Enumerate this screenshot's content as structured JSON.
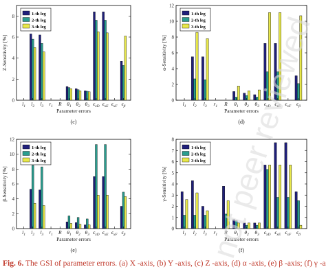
{
  "colors": {
    "series": [
      "#1f1f7a",
      "#2a9d8f",
      "#e8e84a"
    ],
    "caption": "#c0392b",
    "watermark": "#dcdcdc"
  },
  "watermark_text": "not peer reviewed",
  "caption": {
    "label": "Fig. 6.",
    "text": "The GSI of parameter errors. (a)  X -axis, (b)  Y -axis, (c)  Z -axis, (d)  α -axis, (e)  β -axis; (f)  γ -axis."
  },
  "chart_data": [
    {
      "panel": "(c)",
      "type": "bar",
      "ylabel": "Z-Sensitivity [%]",
      "xlabel": "Parameter errors",
      "ylim": [
        0,
        9
      ],
      "yticks": [
        0,
        2,
        4,
        6,
        8
      ],
      "legend": "top-left",
      "categories": [
        "l1",
        "l2",
        "l3",
        "r1",
        "R",
        "θ1",
        "θ2",
        "θ3",
        "ϵxD",
        "ϵxE",
        "ϵxF",
        "ϵβ"
      ],
      "series": [
        {
          "name": "1-th leg",
          "values": [
            0,
            6.3,
            6.2,
            0,
            0,
            1.3,
            1.1,
            0.9,
            8.4,
            8.4,
            0,
            3.7
          ]
        },
        {
          "name": "2-th leg",
          "values": [
            0,
            5.8,
            5.4,
            0,
            0,
            1.2,
            1.0,
            0.85,
            7.6,
            7.6,
            0,
            3.3
          ]
        },
        {
          "name": "3-th leg",
          "values": [
            0,
            5.0,
            4.6,
            0,
            0,
            1.1,
            0.9,
            0.8,
            6.5,
            6.4,
            0,
            6.1
          ]
        }
      ]
    },
    {
      "panel": "(d)",
      "type": "bar",
      "ylabel": "α-Sensitivity [%]",
      "xlabel": "Parameter errors",
      "ylim": [
        0,
        12
      ],
      "yticks": [
        0,
        2,
        4,
        6,
        8,
        10,
        12
      ],
      "legend": "top-left",
      "categories": [
        "l1",
        "l2",
        "l3",
        "r1",
        "R",
        "θ1",
        "θ2",
        "θ3",
        "ϵxD",
        "ϵxE",
        "ϵxF",
        "ϵβ"
      ],
      "series": [
        {
          "name": "1-th leg",
          "values": [
            0,
            5.5,
            5.5,
            0,
            0,
            1.1,
            0.9,
            0.7,
            7.2,
            7.2,
            0,
            3.1
          ]
        },
        {
          "name": "2-th leg",
          "values": [
            0,
            2.7,
            2.6,
            0,
            0,
            0.4,
            0.6,
            0.4,
            3.6,
            3.6,
            0,
            2.1
          ]
        },
        {
          "name": "3-th leg",
          "values": [
            0,
            8.6,
            7.8,
            0,
            0,
            1.8,
            1.2,
            1.3,
            11.1,
            11.1,
            0,
            10.7
          ]
        }
      ]
    },
    {
      "panel": "(e)",
      "type": "bar",
      "ylabel": "β-Sensitivity [%]",
      "xlabel": "Parameter errors",
      "ylim": [
        0,
        12
      ],
      "yticks": [
        0,
        2,
        4,
        6,
        8,
        10,
        12
      ],
      "legend": "top-left",
      "categories": [
        "l1",
        "l2",
        "l3",
        "r1",
        "R",
        "θ1",
        "θ2",
        "θ3",
        "ϵxD",
        "ϵxE",
        "ϵxF",
        "ϵβ"
      ],
      "series": [
        {
          "name": "1-th leg",
          "values": [
            0,
            5.3,
            5.2,
            0,
            0,
            0.9,
            0.8,
            0.5,
            7.0,
            7.0,
            0,
            3.0
          ]
        },
        {
          "name": "2-th leg",
          "values": [
            0,
            8.5,
            8.3,
            0,
            0,
            1.7,
            1.5,
            1.3,
            11.3,
            11.3,
            0,
            4.9
          ]
        },
        {
          "name": "3-th leg",
          "values": [
            0,
            3.4,
            3.1,
            0,
            0,
            0.7,
            0.6,
            0.5,
            4.5,
            4.5,
            0,
            4.3
          ]
        }
      ]
    },
    {
      "panel": "(f)",
      "type": "bar",
      "ylabel": "γ-Sensitivity [%]",
      "xlabel": "Parameter errors",
      "ylim": [
        0,
        8
      ],
      "yticks": [
        0,
        1,
        2,
        3,
        4,
        5,
        6,
        7,
        8
      ],
      "legend": "top-left",
      "categories": [
        "l1",
        "l2",
        "l3",
        "r1",
        "R",
        "θ1",
        "θ2",
        "θ3",
        "ϵxD",
        "ϵxE",
        "ϵxF",
        "ϵβ"
      ],
      "series": [
        {
          "name": "1-th leg",
          "values": [
            3.3,
            4.3,
            2.0,
            0,
            3.8,
            0.8,
            0.5,
            0.5,
            5.7,
            7.7,
            7.7,
            3.3
          ]
        },
        {
          "name": "2-th leg",
          "values": [
            1.2,
            1.2,
            1.2,
            0,
            1.3,
            0.7,
            0.3,
            0.3,
            5.3,
            2.8,
            2.8,
            2.5
          ]
        },
        {
          "name": "3-th leg",
          "values": [
            2.6,
            3.2,
            1.6,
            0,
            2.5,
            0.5,
            0.5,
            0.5,
            5.7,
            5.7,
            5.7,
            0.3
          ]
        }
      ]
    }
  ]
}
